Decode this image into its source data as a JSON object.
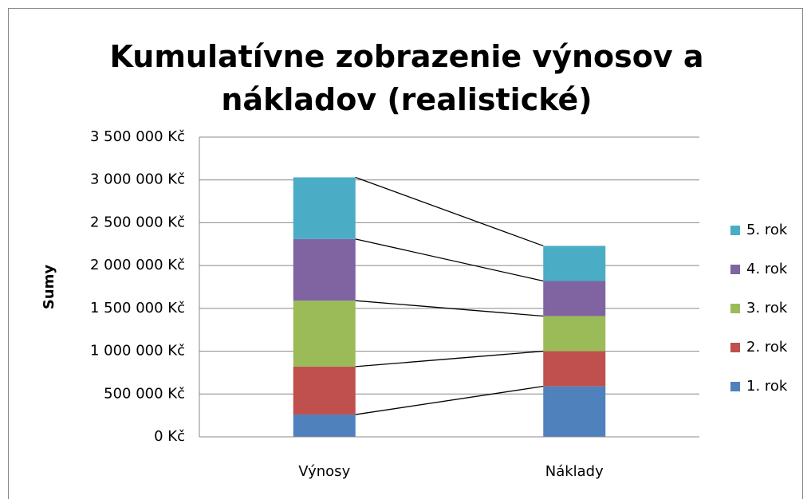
{
  "chart_data": {
    "type": "stacked_bar",
    "title": "Kumulatívne zobrazenie výnosov a nákladov (realistické)",
    "y_label": "Sumy",
    "categories": [
      "Výnosy",
      "Náklady"
    ],
    "series": [
      {
        "name": "1. rok",
        "color": "#4f81bd",
        "values": [
          260000,
          590000
        ]
      },
      {
        "name": "2. rok",
        "color": "#c0504d",
        "values": [
          560000,
          410000
        ]
      },
      {
        "name": "3. rok",
        "color": "#9bbb59",
        "values": [
          770000,
          410000
        ]
      },
      {
        "name": "4. rok",
        "color": "#8064a2",
        "values": [
          720000,
          410000
        ]
      },
      {
        "name": "5. rok",
        "color": "#4bacc6",
        "values": [
          720000,
          410000
        ]
      }
    ],
    "ylim": [
      0,
      3500000
    ],
    "yticks": [
      {
        "value": 0,
        "label": "0 Kč"
      },
      {
        "value": 500000,
        "label": "500 000 Kč"
      },
      {
        "value": 1000000,
        "label": "1 000 000 Kč"
      },
      {
        "value": 1500000,
        "label": "1 500 000 Kč"
      },
      {
        "value": 2000000,
        "label": "2 000 000 Kč"
      },
      {
        "value": 2500000,
        "label": "2 500 000 Kč"
      },
      {
        "value": 3000000,
        "label": "3 000 000 Kč"
      },
      {
        "value": 3500000,
        "label": "3 500 000 Kč"
      }
    ],
    "grid": true,
    "series_lines": true,
    "legend": "right"
  }
}
